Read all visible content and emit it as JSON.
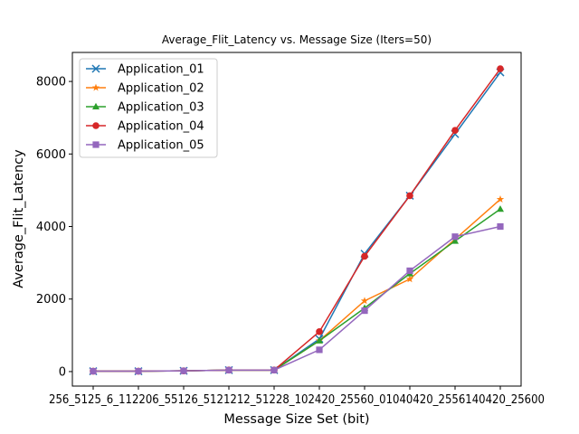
{
  "chart_data": {
    "type": "line",
    "title": "Average_Flit_Latency vs. Message Size (Iters=50)",
    "xlabel": "Message Size Set (bit)",
    "ylabel": "Average_Flit_Latency",
    "categories": [
      "256_512",
      "256_1120",
      "256_5120",
      "512_1120",
      "512_5120",
      "1120_5120",
      "5120_25600",
      "5120_10240",
      "10240_25600",
      "10240_25600"
    ],
    "x_tick_text": "256_5125_6_112206_55126_5121212_51228_102420_25560_01040420_2556140420_25600",
    "yticks": [
      0,
      2000,
      4000,
      6000,
      8000
    ],
    "ylim": [
      -400,
      8800
    ],
    "grid": false,
    "legend_position": "top-left",
    "series": [
      {
        "name": "Application_01",
        "color": "#1f77b4",
        "marker": "x",
        "values": [
          10,
          10,
          20,
          40,
          40,
          900,
          3250,
          4850,
          6550,
          8250
        ]
      },
      {
        "name": "Application_02",
        "color": "#ff7f0e",
        "marker": "star",
        "values": [
          10,
          10,
          20,
          40,
          40,
          850,
          1950,
          2550,
          3650,
          4750
        ]
      },
      {
        "name": "Application_03",
        "color": "#2ca02c",
        "marker": "triangle",
        "values": [
          10,
          10,
          20,
          40,
          40,
          850,
          1750,
          2700,
          3600,
          4480
        ]
      },
      {
        "name": "Application_04",
        "color": "#d62728",
        "marker": "circle",
        "values": [
          10,
          10,
          20,
          40,
          40,
          1100,
          3180,
          4850,
          6650,
          8350
        ]
      },
      {
        "name": "Application_05",
        "color": "#9467bd",
        "marker": "square",
        "values": [
          10,
          10,
          20,
          40,
          40,
          600,
          1680,
          2780,
          3720,
          4000
        ]
      }
    ]
  }
}
